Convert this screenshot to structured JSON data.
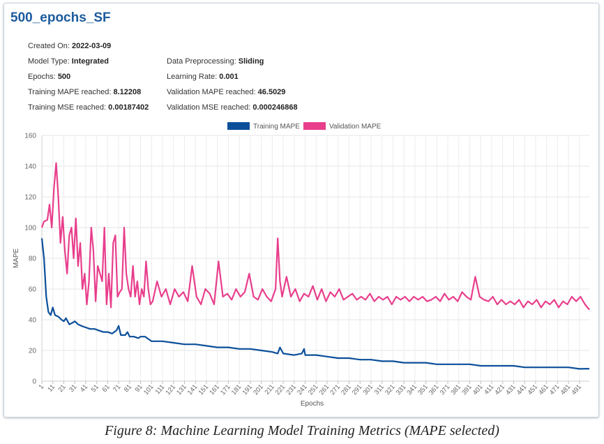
{
  "model": {
    "title": "500_epochs_SF",
    "created_label": "Created On:",
    "created_value": "2022-03-09",
    "type_label": "Model Type:",
    "type_value": "Integrated",
    "preproc_label": "Data Preprocessing:",
    "preproc_value": "Sliding",
    "epochs_label": "Epochs:",
    "epochs_value": "500",
    "lr_label": "Learning Rate:",
    "lr_value": "0.001",
    "train_mape_label": "Training MAPE reached:",
    "train_mape_value": "8.12208",
    "val_mape_label": "Validation MAPE reached:",
    "val_mape_value": "46.5029",
    "train_mse_label": "Training MSE reached:",
    "train_mse_value": "0.00187402",
    "val_mse_label": "Validation MSE reached:",
    "val_mse_value": "0.000246868"
  },
  "caption": "Figure 8: Machine Learning Model Training Metrics (MAPE selected)",
  "chart_data": {
    "type": "line",
    "xlabel": "Epochs",
    "ylabel": "MAPE",
    "xlim": [
      1,
      500
    ],
    "ylim": [
      0,
      160
    ],
    "yticks": [
      0,
      20,
      40,
      60,
      80,
      100,
      120,
      140,
      160
    ],
    "xtick_labels": [
      "1",
      "11",
      "21",
      "31",
      "41",
      "51",
      "61",
      "71",
      "81",
      "91",
      "101",
      "111",
      "121",
      "131",
      "141",
      "151",
      "161",
      "171",
      "181",
      "191",
      "201",
      "211",
      "221",
      "231",
      "241",
      "251",
      "261",
      "271",
      "281",
      "291",
      "301",
      "311",
      "321",
      "331",
      "341",
      "351",
      "361",
      "371",
      "381",
      "391",
      "401",
      "411",
      "421",
      "431",
      "441",
      "451",
      "461",
      "471",
      "481",
      "491"
    ],
    "grid": true,
    "legend_position": "top-center",
    "series": [
      {
        "name": "Training MAPE",
        "color": "#0b4f9a",
        "points": [
          [
            1,
            93
          ],
          [
            3,
            80
          ],
          [
            5,
            55
          ],
          [
            7,
            45
          ],
          [
            9,
            43
          ],
          [
            11,
            48
          ],
          [
            13,
            43
          ],
          [
            16,
            42
          ],
          [
            19,
            40
          ],
          [
            21,
            39
          ],
          [
            23,
            41
          ],
          [
            26,
            37
          ],
          [
            29,
            38
          ],
          [
            31,
            39
          ],
          [
            34,
            37
          ],
          [
            37,
            36
          ],
          [
            41,
            35
          ],
          [
            45,
            34
          ],
          [
            49,
            34
          ],
          [
            53,
            33
          ],
          [
            57,
            32
          ],
          [
            61,
            32
          ],
          [
            65,
            31
          ],
          [
            69,
            33
          ],
          [
            71,
            36
          ],
          [
            73,
            30
          ],
          [
            77,
            30
          ],
          [
            79,
            32
          ],
          [
            81,
            29
          ],
          [
            85,
            29
          ],
          [
            89,
            28
          ],
          [
            91,
            29
          ],
          [
            95,
            29
          ],
          [
            99,
            27
          ],
          [
            101,
            26
          ],
          [
            111,
            26
          ],
          [
            121,
            25
          ],
          [
            131,
            24
          ],
          [
            141,
            24
          ],
          [
            151,
            23
          ],
          [
            161,
            22
          ],
          [
            171,
            22
          ],
          [
            181,
            21
          ],
          [
            191,
            21
          ],
          [
            201,
            20
          ],
          [
            211,
            19
          ],
          [
            216,
            18
          ],
          [
            218,
            22
          ],
          [
            221,
            18
          ],
          [
            231,
            17
          ],
          [
            238,
            18
          ],
          [
            240,
            21
          ],
          [
            241,
            17
          ],
          [
            251,
            17
          ],
          [
            261,
            16
          ],
          [
            271,
            15
          ],
          [
            281,
            15
          ],
          [
            291,
            14
          ],
          [
            301,
            14
          ],
          [
            311,
            13
          ],
          [
            321,
            13
          ],
          [
            331,
            12
          ],
          [
            341,
            12
          ],
          [
            351,
            12
          ],
          [
            361,
            11
          ],
          [
            371,
            11
          ],
          [
            381,
            11
          ],
          [
            391,
            11
          ],
          [
            401,
            10
          ],
          [
            411,
            10
          ],
          [
            421,
            10
          ],
          [
            431,
            10
          ],
          [
            441,
            9
          ],
          [
            451,
            9
          ],
          [
            461,
            9
          ],
          [
            471,
            9
          ],
          [
            481,
            9
          ],
          [
            491,
            8
          ],
          [
            500,
            8.12
          ]
        ]
      },
      {
        "name": "Validation MAPE",
        "color": "#e83e8c",
        "points": [
          [
            1,
            100
          ],
          [
            3,
            104
          ],
          [
            6,
            105
          ],
          [
            8,
            115
          ],
          [
            10,
            100
          ],
          [
            12,
            125
          ],
          [
            14,
            142
          ],
          [
            16,
            120
          ],
          [
            18,
            90
          ],
          [
            20,
            107
          ],
          [
            22,
            85
          ],
          [
            24,
            70
          ],
          [
            26,
            95
          ],
          [
            28,
            100
          ],
          [
            30,
            80
          ],
          [
            32,
            106
          ],
          [
            34,
            75
          ],
          [
            36,
            90
          ],
          [
            38,
            60
          ],
          [
            40,
            70
          ],
          [
            42,
            50
          ],
          [
            44,
            65
          ],
          [
            46,
            100
          ],
          [
            48,
            85
          ],
          [
            50,
            52
          ],
          [
            52,
            75
          ],
          [
            54,
            70
          ],
          [
            56,
            65
          ],
          [
            58,
            100
          ],
          [
            60,
            50
          ],
          [
            62,
            70
          ],
          [
            64,
            48
          ],
          [
            66,
            90
          ],
          [
            68,
            95
          ],
          [
            70,
            55
          ],
          [
            72,
            58
          ],
          [
            74,
            60
          ],
          [
            76,
            100
          ],
          [
            78,
            70
          ],
          [
            80,
            60
          ],
          [
            82,
            55
          ],
          [
            84,
            75
          ],
          [
            86,
            55
          ],
          [
            88,
            65
          ],
          [
            90,
            50
          ],
          [
            92,
            60
          ],
          [
            94,
            55
          ],
          [
            96,
            78
          ],
          [
            98,
            60
          ],
          [
            100,
            50
          ],
          [
            102,
            52
          ],
          [
            106,
            65
          ],
          [
            110,
            55
          ],
          [
            114,
            60
          ],
          [
            118,
            50
          ],
          [
            122,
            60
          ],
          [
            126,
            55
          ],
          [
            130,
            58
          ],
          [
            134,
            52
          ],
          [
            138,
            75
          ],
          [
            142,
            55
          ],
          [
            146,
            50
          ],
          [
            150,
            60
          ],
          [
            154,
            57
          ],
          [
            158,
            50
          ],
          [
            162,
            78
          ],
          [
            166,
            55
          ],
          [
            170,
            57
          ],
          [
            174,
            53
          ],
          [
            178,
            60
          ],
          [
            182,
            55
          ],
          [
            186,
            58
          ],
          [
            190,
            70
          ],
          [
            194,
            55
          ],
          [
            198,
            53
          ],
          [
            202,
            60
          ],
          [
            206,
            55
          ],
          [
            210,
            52
          ],
          [
            214,
            60
          ],
          [
            216,
            93
          ],
          [
            218,
            65
          ],
          [
            220,
            55
          ],
          [
            224,
            68
          ],
          [
            228,
            55
          ],
          [
            232,
            60
          ],
          [
            236,
            52
          ],
          [
            240,
            57
          ],
          [
            244,
            55
          ],
          [
            248,
            62
          ],
          [
            252,
            53
          ],
          [
            256,
            60
          ],
          [
            260,
            52
          ],
          [
            264,
            58
          ],
          [
            268,
            55
          ],
          [
            272,
            60
          ],
          [
            276,
            53
          ],
          [
            280,
            55
          ],
          [
            284,
            57
          ],
          [
            288,
            53
          ],
          [
            292,
            55
          ],
          [
            296,
            53
          ],
          [
            300,
            57
          ],
          [
            304,
            52
          ],
          [
            308,
            55
          ],
          [
            312,
            53
          ],
          [
            316,
            55
          ],
          [
            320,
            50
          ],
          [
            324,
            55
          ],
          [
            328,
            53
          ],
          [
            332,
            55
          ],
          [
            336,
            52
          ],
          [
            340,
            55
          ],
          [
            344,
            53
          ],
          [
            348,
            55
          ],
          [
            352,
            52
          ],
          [
            356,
            53
          ],
          [
            360,
            55
          ],
          [
            364,
            52
          ],
          [
            368,
            57
          ],
          [
            372,
            53
          ],
          [
            376,
            55
          ],
          [
            380,
            52
          ],
          [
            384,
            58
          ],
          [
            388,
            55
          ],
          [
            392,
            53
          ],
          [
            396,
            68
          ],
          [
            400,
            55
          ],
          [
            404,
            53
          ],
          [
            408,
            52
          ],
          [
            412,
            55
          ],
          [
            416,
            50
          ],
          [
            420,
            53
          ],
          [
            424,
            50
          ],
          [
            428,
            52
          ],
          [
            432,
            50
          ],
          [
            436,
            53
          ],
          [
            440,
            48
          ],
          [
            444,
            52
          ],
          [
            448,
            50
          ],
          [
            452,
            53
          ],
          [
            456,
            48
          ],
          [
            460,
            52
          ],
          [
            464,
            50
          ],
          [
            468,
            53
          ],
          [
            472,
            48
          ],
          [
            476,
            52
          ],
          [
            480,
            50
          ],
          [
            484,
            55
          ],
          [
            488,
            52
          ],
          [
            492,
            55
          ],
          [
            496,
            50
          ],
          [
            500,
            46.5
          ]
        ]
      }
    ]
  }
}
